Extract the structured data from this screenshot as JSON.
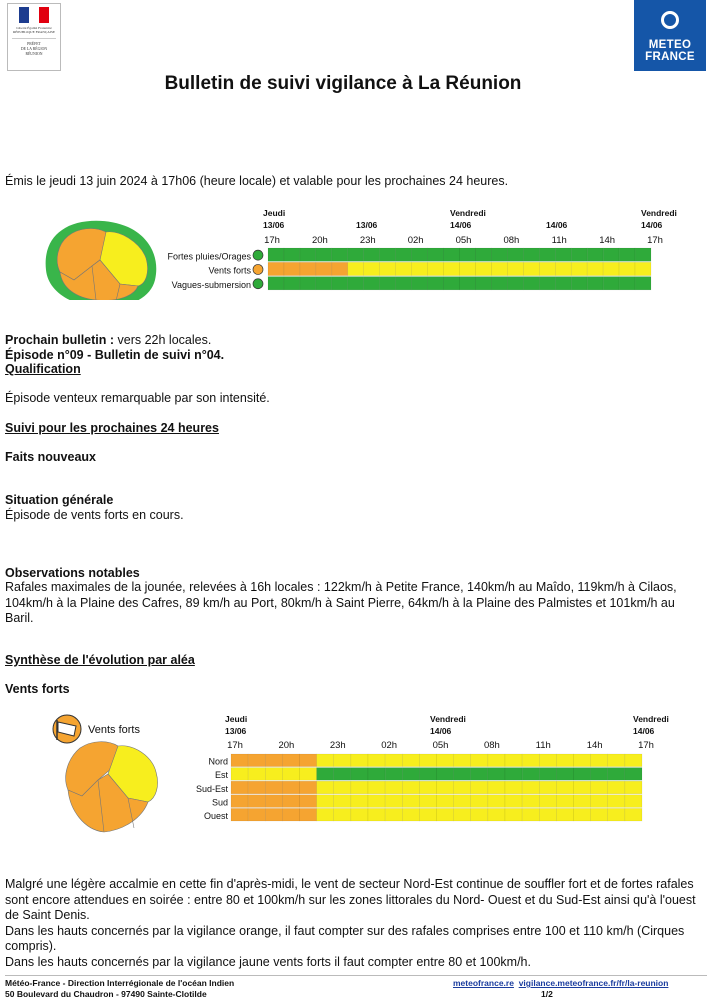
{
  "header": {
    "prefecture_logo": {
      "top_text": "Liberté Égalité Fraternité RÉPUBLIQUE FRANÇAISE",
      "bottom_text": [
        "PRÉFET",
        "DE LA RÉGION",
        "RÉUNION"
      ]
    },
    "meteo_logo": {
      "line1": "METEO",
      "line2": "FRANCE"
    },
    "title": "Bulletin de suivi vigilance à La Réunion"
  },
  "emission": "Émis le jeudi 13 juin 2024 à 17h06 (heure locale) et valable pour les prochaines 24 heures.",
  "summary_chart": {
    "day_labels": [
      {
        "day": "Jeudi",
        "date": "13/06"
      },
      {
        "day": "",
        "date": "13/06"
      },
      {
        "day": "Vendredi",
        "date": "14/06"
      },
      {
        "day": "",
        "date": "14/06"
      },
      {
        "day": "Vendredi",
        "date": "14/06"
      }
    ],
    "hour_ticks": [
      "17h",
      "20h",
      "23h",
      "02h",
      "05h",
      "08h",
      "11h",
      "14h",
      "17h"
    ],
    "rows": [
      {
        "label": "Fortes pluies/Orages",
        "segments": [
          {
            "level": "green",
            "hours": 24
          }
        ]
      },
      {
        "label": "Vents forts",
        "segments": [
          {
            "level": "orange",
            "hours": 5
          },
          {
            "level": "yellow",
            "hours": 19
          }
        ]
      },
      {
        "label": "Vagues-submersion",
        "segments": [
          {
            "level": "green",
            "hours": 24
          }
        ]
      }
    ]
  },
  "colors": {
    "green": "#2faa3a",
    "yellow": "#f7ee1e",
    "orange": "#f5a431",
    "map_border": "#39b54a",
    "mf_blue": "#1556a8",
    "flag_blue": "#1d3c8f",
    "flag_red": "#e1000f"
  },
  "prochain": {
    "label": "Prochain bulletin :",
    "value": " vers 22h locales."
  },
  "episode": "Épisode n°09 - Bulletin de suivi n°04.",
  "qualification": {
    "heading": "Qualification",
    "text": "Épisode venteux remarquable par son intensité."
  },
  "suivi_heading": "Suivi pour les prochaines 24 heures",
  "faits_heading": "Faits nouveaux",
  "situation": {
    "heading": "Situation générale",
    "text": "Épisode de vents forts en cours."
  },
  "observations": {
    "heading": "Observations notables",
    "text": "Rafales maximales de la jounée, relevées à 16h locales  :  122km/h à Petite France, 140km/h au Maîdo, 119km/h à Cilaos, 104km/h à la Plaine des Cafres, 89 km/h au Port, 80km/h à Saint Pierre, 64km/h à la Plaine des Palmistes et 101km/h au Baril."
  },
  "synthese_heading": "Synthèse de l'évolution par aléa",
  "vents_heading": "Vents forts",
  "vents_chart": {
    "title": "Vents forts",
    "day_labels": [
      {
        "day": "Jeudi",
        "date": "13/06"
      },
      {
        "day": "Vendredi",
        "date": "14/06"
      },
      {
        "day": "Vendredi",
        "date": "14/06"
      }
    ],
    "hour_ticks": [
      "17h",
      "20h",
      "23h",
      "02h",
      "05h",
      "08h",
      "11h",
      "14h",
      "17h"
    ],
    "rows": [
      {
        "label": "Nord",
        "segments": [
          {
            "level": "orange",
            "hours": 5
          },
          {
            "level": "yellow",
            "hours": 19
          }
        ]
      },
      {
        "label": "Est",
        "segments": [
          {
            "level": "yellow",
            "hours": 5
          },
          {
            "level": "green",
            "hours": 19
          }
        ]
      },
      {
        "label": "Sud-Est",
        "segments": [
          {
            "level": "orange",
            "hours": 5
          },
          {
            "level": "yellow",
            "hours": 19
          }
        ]
      },
      {
        "label": "Sud",
        "segments": [
          {
            "level": "orange",
            "hours": 5
          },
          {
            "level": "yellow",
            "hours": 19
          }
        ]
      },
      {
        "label": "Ouest",
        "segments": [
          {
            "level": "orange",
            "hours": 5
          },
          {
            "level": "yellow",
            "hours": 19
          }
        ]
      }
    ]
  },
  "vents_text": [
    "Malgré une légère accalmie en cette fin d'après-midi, le vent de secteur Nord-Est continue de souffler fort et de fortes rafales sont encore attendues en soirée :  entre 80 et 100km/h sur les zones littorales du Nord- Ouest et du Sud-Est ainsi qu'à l'ouest de Saint Denis.",
    "Dans les hauts concernés par la vigilance orange, il faut compter sur des rafales comprises entre 100 et 110 km/h (Cirques compris).",
    "Dans les hauts concernés par la vigilance jaune vents forts il faut compter entre 80 et 100km/h."
  ],
  "footer": {
    "line1": "Météo-France - Direction Interrégionale de l'océan Indien",
    "line2": "50 Boulevard du Chaudron - 97490 Sainte-Clotilde",
    "link1": "meteofrance.re",
    "link2": "vigilance.meteofrance.fr/fr/la-reunion",
    "page": "1/2"
  }
}
